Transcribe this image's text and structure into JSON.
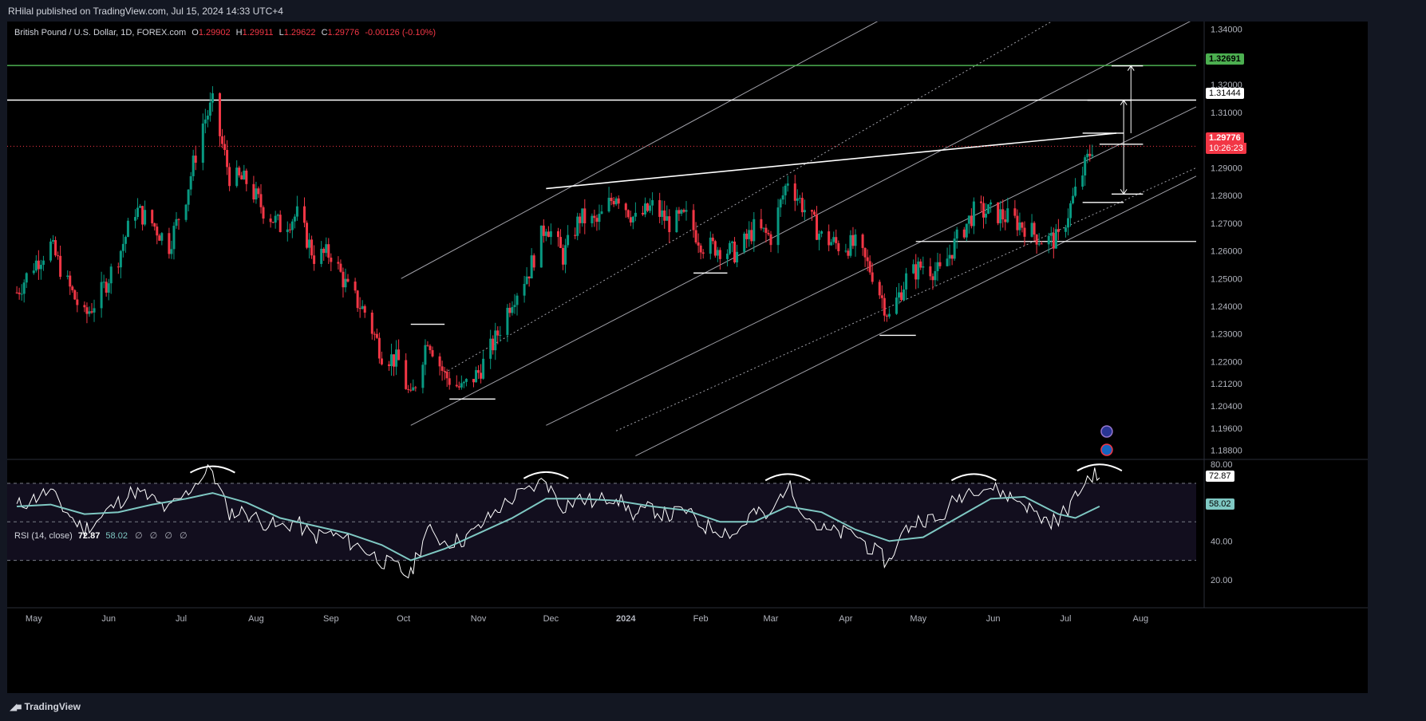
{
  "publisher": "RHilal published on TradingView.com, Jul 15, 2024 14:33 UTC+4",
  "symbol": {
    "name": "British Pound / U.S. Dollar, 1D, FOREX.com",
    "open_label": "O",
    "open": "1.29902",
    "high_label": "H",
    "high": "1.29911",
    "low_label": "L",
    "low": "1.29622",
    "close_label": "C",
    "close": "1.29776",
    "change": "-0.00126 (-0.10%)"
  },
  "price_tags": {
    "green_level": "1.32691",
    "white_level": "1.31444",
    "last_price": "1.29776",
    "countdown": "10:26:23"
  },
  "rsi": {
    "label": "RSI (14, close)",
    "value": "72.87",
    "ma_value": "58.02",
    "empty_slots": [
      "∅",
      "∅",
      "∅",
      "∅"
    ]
  },
  "footer": {
    "logo_text": "TradingView",
    "logo_icon": "tradingview-logo-icon"
  },
  "colors": {
    "up": "#089981",
    "down": "#f23645",
    "rsi_line": "#ffffff",
    "rsi_ma": "#7fc8c3",
    "green_line": "#4caf50",
    "last_price_bg": "#f23645",
    "grid": "#1c1f27"
  },
  "chart_data": [
    {
      "type": "candlestick",
      "title": "British Pound / U.S. Dollar, 1D, FOREX.com",
      "x_tick_labels": [
        "May",
        "Jun",
        "Jul",
        "Aug",
        "Sep",
        "Oct",
        "Nov",
        "Dec",
        "2024",
        "Feb",
        "Mar",
        "Apr",
        "May",
        "Jun",
        "Jul",
        "Aug"
      ],
      "y_tick_labels": [
        "1.34000",
        "1.33000",
        "1.32000",
        "1.31000",
        "1.30000",
        "1.29000",
        "1.28000",
        "1.27000",
        "1.26000",
        "1.25000",
        "1.24000",
        "1.23000",
        "1.22000",
        "1.21200",
        "1.20400",
        "1.19600",
        "1.18800"
      ],
      "ylim": [
        1.185,
        1.3428
      ],
      "horizontal_levels": [
        1.32691,
        1.31444,
        1.2634
      ],
      "last_price": 1.29776,
      "close_path": [
        [
          "2023-04-24",
          1.245
        ],
        [
          "2023-05-01",
          1.255
        ],
        [
          "2023-05-08",
          1.262
        ],
        [
          "2023-05-15",
          1.248
        ],
        [
          "2023-05-22",
          1.236
        ],
        [
          "2023-05-29",
          1.245
        ],
        [
          "2023-06-05",
          1.258
        ],
        [
          "2023-06-12",
          1.275
        ],
        [
          "2023-06-19",
          1.27
        ],
        [
          "2023-06-26",
          1.262
        ],
        [
          "2023-07-03",
          1.28
        ],
        [
          "2023-07-10",
          1.306
        ],
        [
          "2023-07-14",
          1.313
        ],
        [
          "2023-07-21",
          1.287
        ],
        [
          "2023-07-28",
          1.285
        ],
        [
          "2023-08-04",
          1.275
        ],
        [
          "2023-08-11",
          1.269
        ],
        [
          "2023-08-18",
          1.273
        ],
        [
          "2023-08-25",
          1.258
        ],
        [
          "2023-09-01",
          1.259
        ],
        [
          "2023-09-08",
          1.246
        ],
        [
          "2023-09-15",
          1.238
        ],
        [
          "2023-09-22",
          1.223
        ],
        [
          "2023-09-29",
          1.22
        ],
        [
          "2023-10-04",
          1.206
        ],
        [
          "2023-10-11",
          1.229
        ],
        [
          "2023-10-18",
          1.215
        ],
        [
          "2023-10-25",
          1.21
        ],
        [
          "2023-11-01",
          1.216
        ],
        [
          "2023-11-08",
          1.228
        ],
        [
          "2023-11-15",
          1.243
        ],
        [
          "2023-11-22",
          1.253
        ],
        [
          "2023-11-29",
          1.27
        ],
        [
          "2023-12-06",
          1.258
        ],
        [
          "2023-12-13",
          1.272
        ],
        [
          "2023-12-20",
          1.27
        ],
        [
          "2023-12-28",
          1.281
        ],
        [
          "2024-01-05",
          1.271
        ],
        [
          "2024-01-12",
          1.276
        ],
        [
          "2024-01-19",
          1.27
        ],
        [
          "2024-01-26",
          1.272
        ],
        [
          "2024-02-02",
          1.262
        ],
        [
          "2024-02-09",
          1.261
        ],
        [
          "2024-02-16",
          1.259
        ],
        [
          "2024-02-23",
          1.268
        ],
        [
          "2024-03-01",
          1.265
        ],
        [
          "2024-03-08",
          1.286
        ],
        [
          "2024-03-15",
          1.275
        ],
        [
          "2024-03-22",
          1.265
        ],
        [
          "2024-03-29",
          1.262
        ],
        [
          "2024-04-05",
          1.262
        ],
        [
          "2024-04-12",
          1.252
        ],
        [
          "2024-04-19",
          1.236
        ],
        [
          "2024-04-26",
          1.25
        ],
        [
          "2024-05-03",
          1.255
        ],
        [
          "2024-05-10",
          1.252
        ],
        [
          "2024-05-17",
          1.264
        ],
        [
          "2024-05-24",
          1.274
        ],
        [
          "2024-05-31",
          1.274
        ],
        [
          "2024-06-07",
          1.272
        ],
        [
          "2024-06-14",
          1.269
        ],
        [
          "2024-06-21",
          1.264
        ],
        [
          "2024-06-28",
          1.264
        ],
        [
          "2024-07-05",
          1.281
        ],
        [
          "2024-07-12",
          1.2977
        ],
        [
          "2024-07-15",
          1.29776
        ]
      ]
    },
    {
      "type": "line",
      "title": "RSI (14, close)",
      "y_tick_labels": [
        "80.00",
        "60.00",
        "40.00",
        "20.00"
      ],
      "ylim": [
        17,
        82
      ],
      "bands": [
        70,
        50,
        30
      ],
      "series": [
        {
          "name": "RSI",
          "points": [
            [
              "2023-04-24",
              58
            ],
            [
              "2023-05-01",
              62
            ],
            [
              "2023-05-08",
              66
            ],
            [
              "2023-05-15",
              55
            ],
            [
              "2023-05-22",
              46
            ],
            [
              "2023-05-29",
              52
            ],
            [
              "2023-06-05",
              60
            ],
            [
              "2023-06-12",
              66
            ],
            [
              "2023-06-19",
              62
            ],
            [
              "2023-06-26",
              56
            ],
            [
              "2023-07-03",
              64
            ],
            [
              "2023-07-10",
              74
            ],
            [
              "2023-07-14",
              77
            ],
            [
              "2023-07-21",
              55
            ],
            [
              "2023-07-28",
              55
            ],
            [
              "2023-08-04",
              50
            ],
            [
              "2023-08-11",
              47
            ],
            [
              "2023-08-18",
              50
            ],
            [
              "2023-08-25",
              42
            ],
            [
              "2023-09-01",
              44
            ],
            [
              "2023-09-08",
              40
            ],
            [
              "2023-09-15",
              36
            ],
            [
              "2023-09-22",
              30
            ],
            [
              "2023-09-29",
              26
            ],
            [
              "2023-10-04",
              22
            ],
            [
              "2023-10-11",
              46
            ],
            [
              "2023-10-18",
              40
            ],
            [
              "2023-10-25",
              40
            ],
            [
              "2023-11-01",
              46
            ],
            [
              "2023-11-08",
              55
            ],
            [
              "2023-11-15",
              62
            ],
            [
              "2023-11-22",
              66
            ],
            [
              "2023-11-29",
              72
            ],
            [
              "2023-12-06",
              58
            ],
            [
              "2023-12-13",
              62
            ],
            [
              "2023-12-20",
              60
            ],
            [
              "2023-12-28",
              64
            ],
            [
              "2024-01-05",
              53
            ],
            [
              "2024-01-12",
              57
            ],
            [
              "2024-01-19",
              53
            ],
            [
              "2024-01-26",
              56
            ],
            [
              "2024-02-02",
              48
            ],
            [
              "2024-02-09",
              46
            ],
            [
              "2024-02-16",
              44
            ],
            [
              "2024-02-23",
              55
            ],
            [
              "2024-03-01",
              52
            ],
            [
              "2024-03-08",
              70
            ],
            [
              "2024-03-15",
              56
            ],
            [
              "2024-03-22",
              46
            ],
            [
              "2024-03-29",
              44
            ],
            [
              "2024-04-05",
              44
            ],
            [
              "2024-04-12",
              36
            ],
            [
              "2024-04-19",
              29
            ],
            [
              "2024-04-26",
              46
            ],
            [
              "2024-05-03",
              52
            ],
            [
              "2024-05-10",
              50
            ],
            [
              "2024-05-17",
              62
            ],
            [
              "2024-05-24",
              68
            ],
            [
              "2024-05-31",
              68
            ],
            [
              "2024-06-07",
              64
            ],
            [
              "2024-06-14",
              60
            ],
            [
              "2024-06-21",
              52
            ],
            [
              "2024-06-28",
              50
            ],
            [
              "2024-07-05",
              62
            ],
            [
              "2024-07-12",
              75
            ],
            [
              "2024-07-15",
              72.87
            ]
          ]
        },
        {
          "name": "RSI-based MA",
          "points": [
            [
              "2023-04-24",
              58
            ],
            [
              "2023-05-08",
              59
            ],
            [
              "2023-05-22",
              54
            ],
            [
              "2023-06-05",
              55
            ],
            [
              "2023-06-19",
              59
            ],
            [
              "2023-07-03",
              62
            ],
            [
              "2023-07-14",
              65
            ],
            [
              "2023-07-28",
              60
            ],
            [
              "2023-08-11",
              52
            ],
            [
              "2023-08-25",
              48
            ],
            [
              "2023-09-08",
              44
            ],
            [
              "2023-09-22",
              38
            ],
            [
              "2023-10-04",
              30
            ],
            [
              "2023-10-18",
              36
            ],
            [
              "2023-11-01",
              44
            ],
            [
              "2023-11-15",
              52
            ],
            [
              "2023-11-29",
              62
            ],
            [
              "2023-12-13",
              62
            ],
            [
              "2023-12-28",
              61
            ],
            [
              "2024-01-12",
              58
            ],
            [
              "2024-01-26",
              56
            ],
            [
              "2024-02-09",
              50
            ],
            [
              "2024-02-23",
              50
            ],
            [
              "2024-03-08",
              58
            ],
            [
              "2024-03-22",
              55
            ],
            [
              "2024-04-05",
              46
            ],
            [
              "2024-04-19",
              40
            ],
            [
              "2024-05-03",
              42
            ],
            [
              "2024-05-17",
              52
            ],
            [
              "2024-05-31",
              62
            ],
            [
              "2024-06-14",
              63
            ],
            [
              "2024-06-28",
              54
            ],
            [
              "2024-07-05",
              52
            ],
            [
              "2024-07-15",
              58.02
            ]
          ]
        }
      ]
    }
  ]
}
